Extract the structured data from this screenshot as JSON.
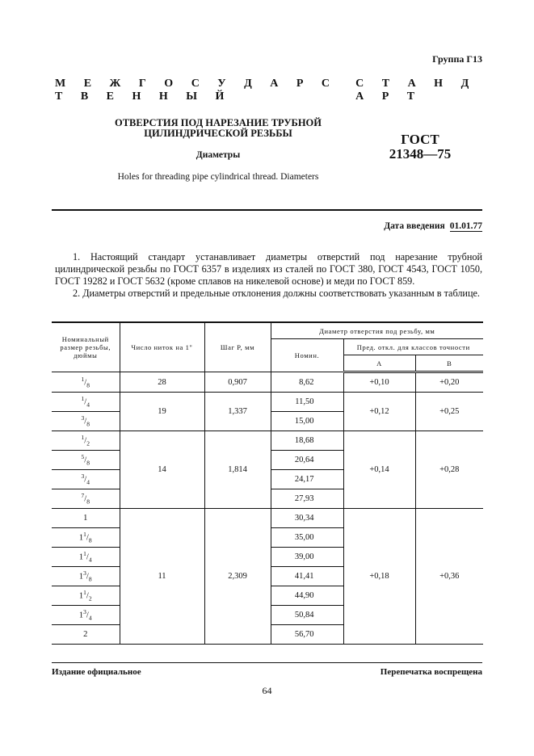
{
  "header": {
    "group": "Группа Г13",
    "standard_words": [
      "М Е Ж Г О С У Д А Р С Т В Е Н Н Ы Й",
      "С Т А Н Д А Р Т"
    ],
    "title_line1": "ОТВЕРСТИЯ ПОД НАРЕЗАНИЕ ТРУБНОЙ",
    "title_line2": "ЦИЛИНДРИЧЕСКОЙ  РЕЗЬБЫ",
    "subtitle": "Диаметры",
    "english": "Holes for  threading pipe cylindrical thread. Diameters",
    "gost_label": "ГОСТ",
    "gost_number": "21348—75"
  },
  "date": {
    "label": "Дата введения",
    "value": "01.01.77"
  },
  "body": {
    "p1": "1. Настоящий  стандарт устанавливает диаметры отверстий под нарезание трубной цилиндрической резьбы по ГОСТ 6357 в изделиях из сталей по ГОСТ 380, ГОСТ 4543, ГОСТ 1050, ГОСТ 19282 и ГОСТ 5632 (кроме сплавов на никелевой основе) и меди по ГОСТ 859.",
    "p2": "2. Диаметры отверстий и предельные отклонения должны соответствовать указанным в таблице."
  },
  "table": {
    "headers": {
      "size": "Номинальный размер резьбы, дюймы",
      "threads": "Число ниток на 1\"",
      "pitch": "Шаг P, мм",
      "diameter": "Диаметр отверстия под резьбу, мм",
      "nominal": "Номин.",
      "tolerance": "Пред. откл. для классов точности",
      "class_a": "A",
      "class_b": "B"
    },
    "groups": [
      {
        "threads": "28",
        "pitch": "0,907",
        "a": "+0,10",
        "b": "+0,20",
        "rows": [
          {
            "whole": "",
            "num": "1",
            "den": "8",
            "nominal": "8,62"
          }
        ]
      },
      {
        "threads": "19",
        "pitch": "1,337",
        "a": "+0,12",
        "b": "+0,25",
        "rows": [
          {
            "whole": "",
            "num": "1",
            "den": "4",
            "nominal": "11,50"
          },
          {
            "whole": "",
            "num": "3",
            "den": "8",
            "nominal": "15,00"
          }
        ]
      },
      {
        "threads": "14",
        "pitch": "1,814",
        "a": "+0,14",
        "b": "+0,28",
        "rows": [
          {
            "whole": "",
            "num": "1",
            "den": "2",
            "nominal": "18,68"
          },
          {
            "whole": "",
            "num": "5",
            "den": "8",
            "nominal": "20,64"
          },
          {
            "whole": "",
            "num": "3",
            "den": "4",
            "nominal": "24,17"
          },
          {
            "whole": "",
            "num": "7",
            "den": "8",
            "nominal": "27,93"
          }
        ]
      },
      {
        "threads": "11",
        "pitch": "2,309",
        "a": "+0,18",
        "b": "+0,36",
        "rows": [
          {
            "whole": "1",
            "num": "",
            "den": "",
            "nominal": "30,34"
          },
          {
            "whole": "1",
            "num": "1",
            "den": "8",
            "nominal": "35,00"
          },
          {
            "whole": "1",
            "num": "1",
            "den": "4",
            "nominal": "39,00"
          },
          {
            "whole": "1",
            "num": "3",
            "den": "8",
            "nominal": "41,41"
          },
          {
            "whole": "1",
            "num": "1",
            "den": "2",
            "nominal": "44,90"
          },
          {
            "whole": "1",
            "num": "3",
            "den": "4",
            "nominal": "50,84"
          },
          {
            "whole": "2",
            "num": "",
            "den": "",
            "nominal": "56,70"
          }
        ]
      }
    ]
  },
  "footer": {
    "left": "Издание официальное",
    "right": "Перепечатка воспрещена",
    "page": "64"
  }
}
